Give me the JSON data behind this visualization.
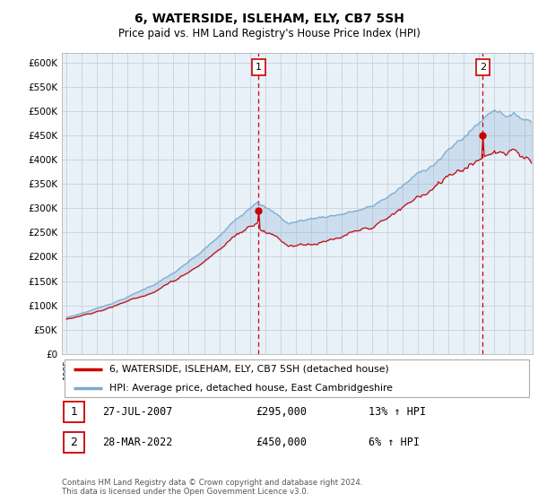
{
  "title": "6, WATERSIDE, ISLEHAM, ELY, CB7 5SH",
  "subtitle": "Price paid vs. HM Land Registry's House Price Index (HPI)",
  "legend_line1": "6, WATERSIDE, ISLEHAM, ELY, CB7 5SH (detached house)",
  "legend_line2": "HPI: Average price, detached house, East Cambridgeshire",
  "transaction1_date": "27-JUL-2007",
  "transaction1_price": "£295,000",
  "transaction1_hpi": "13% ↑ HPI",
  "transaction2_date": "28-MAR-2022",
  "transaction2_price": "£450,000",
  "transaction2_hpi": "6% ↑ HPI",
  "footer": "Contains HM Land Registry data © Crown copyright and database right 2024.\nThis data is licensed under the Open Government Licence v3.0.",
  "ylim": [
    0,
    620000
  ],
  "yticks": [
    0,
    50000,
    100000,
    150000,
    200000,
    250000,
    300000,
    350000,
    400000,
    450000,
    500000,
    550000,
    600000
  ],
  "line1_color": "#cc0000",
  "line2_color": "#7aaad0",
  "fill_color": "#ddeeff",
  "vline_color": "#cc0000",
  "background_color": "#ffffff",
  "chart_bg_color": "#e8f0f8",
  "grid_color": "#c8d0dc"
}
